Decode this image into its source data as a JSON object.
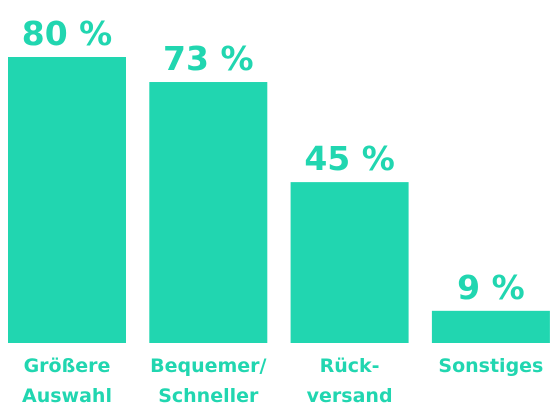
{
  "chart_data": {
    "type": "bar",
    "categories": [
      [
        "Größere",
        "Auswahl"
      ],
      [
        "Bequemer/",
        "Schneller"
      ],
      [
        "Rück-",
        "versand"
      ],
      [
        "Sonstiges"
      ]
    ],
    "values": [
      80,
      73,
      45,
      9
    ],
    "value_labels": [
      "80 %",
      "73 %",
      "45 %",
      "9 %"
    ],
    "color": "#21d6b0"
  }
}
